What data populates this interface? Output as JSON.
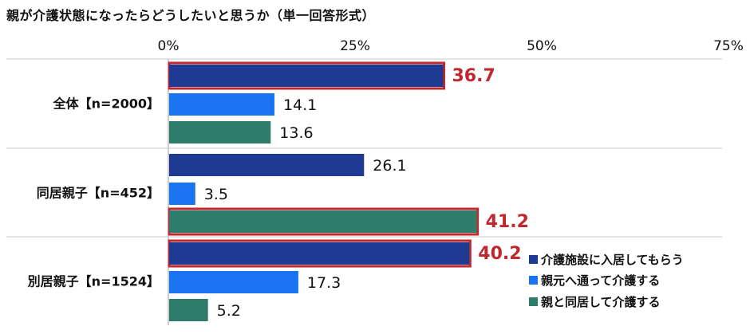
{
  "chart_data": {
    "type": "bar",
    "orientation": "horizontal",
    "title": "親が介護状態になったらどうしたいと思うか（単一回答形式）",
    "xlim": [
      0,
      75
    ],
    "xticks": [
      "0%",
      "25%",
      "50%",
      "75%"
    ],
    "grid": false,
    "legend_position": "bottom-right",
    "categories": [
      "全体【n=2000】",
      "同居親子【n=452】",
      "別居親子【n=1524】"
    ],
    "series": [
      {
        "name": "介護施設に入居してもらう",
        "color": "#1f3a93",
        "values": [
          36.7,
          26.1,
          40.2
        ]
      },
      {
        "name": "親元へ通って介護する",
        "color": "#1a73f0",
        "values": [
          14.1,
          3.5,
          17.3
        ]
      },
      {
        "name": "親と同居して介護する",
        "color": "#2e7d6b",
        "values": [
          13.6,
          41.2,
          5.2
        ]
      }
    ],
    "highlighted": [
      {
        "category": 0,
        "series": 0
      },
      {
        "category": 1,
        "series": 2
      },
      {
        "category": 2,
        "series": 0
      }
    ],
    "highlight_color": "#c1272d",
    "value_label_color": "#111111"
  }
}
